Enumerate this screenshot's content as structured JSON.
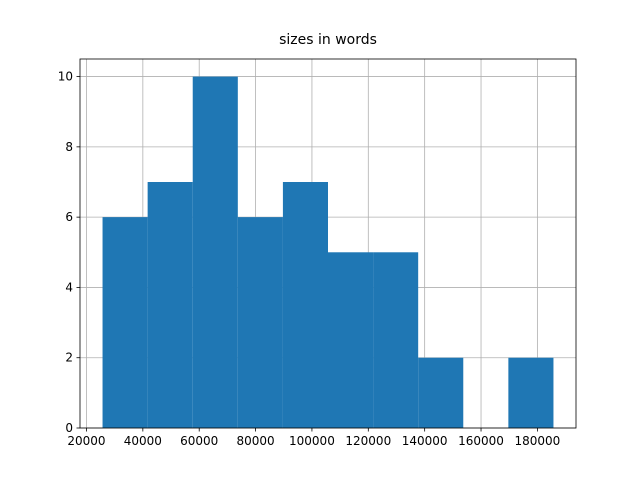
{
  "chart_data": {
    "type": "histogram",
    "title": "sizes in words",
    "bins": [
      25700,
      41700,
      57700,
      73700,
      89700,
      105700,
      121700,
      137700,
      153700,
      169700,
      185700
    ],
    "values": [
      6,
      7,
      10,
      6,
      7,
      5,
      5,
      2,
      0,
      2
    ],
    "color": "#1f77b4",
    "xlim": [
      17700,
      193700
    ],
    "xticks": [
      20000,
      40000,
      60000,
      80000,
      100000,
      120000,
      140000,
      160000,
      180000
    ],
    "ylim": [
      0,
      10.5
    ],
    "yticks": [
      0,
      2,
      4,
      6,
      8,
      10
    ],
    "grid": true
  }
}
